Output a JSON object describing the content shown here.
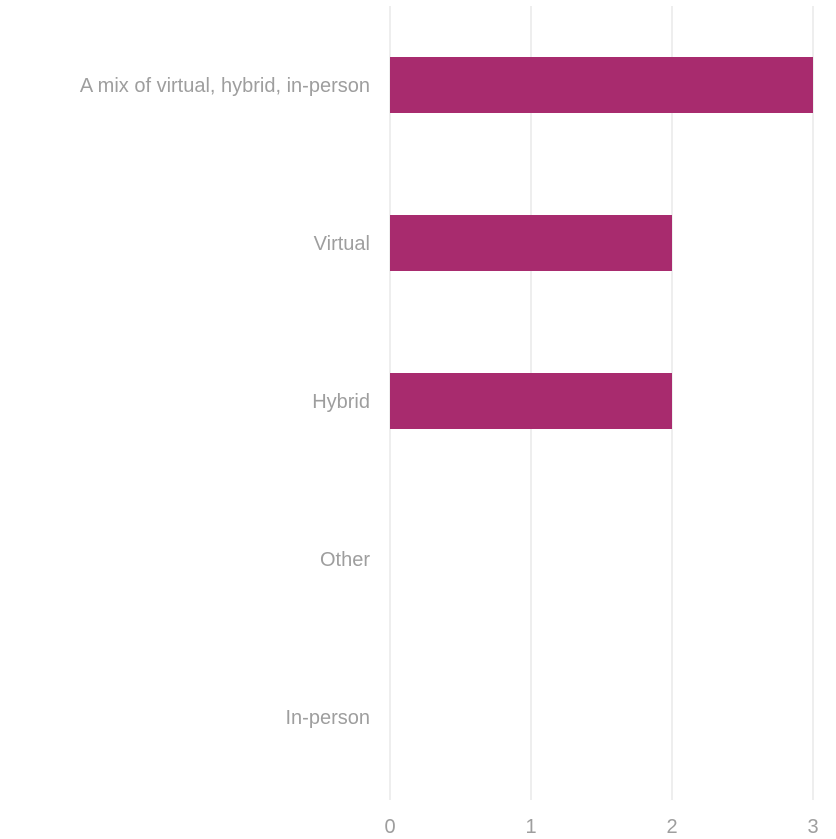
{
  "colors": {
    "bar": "#a82b6e",
    "grid": "#e3e3e3",
    "text": "#9e9e9e"
  },
  "chart_data": {
    "type": "bar",
    "orientation": "horizontal",
    "categories": [
      "A mix of virtual, hybrid, in-person",
      "Virtual",
      "Hybrid",
      "Other",
      "In-person"
    ],
    "values": [
      3,
      2,
      2,
      0,
      0
    ],
    "xlim": [
      0,
      3
    ],
    "xticks": [
      0,
      1,
      2,
      3
    ],
    "grid": true,
    "legend": "none"
  }
}
